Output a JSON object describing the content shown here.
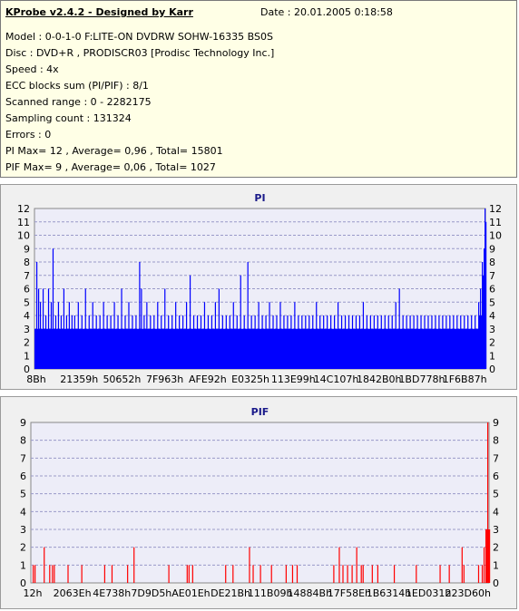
{
  "header": {
    "title": "KProbe v2.4.2 - Designed by Karr",
    "date": "Date : 20.01.2005 0:18:58",
    "lines": [
      "Model : 0-0-1-0 F:LITE-ON DVDRW SOHW-16335 BS0S",
      "Disc : DVD+R , PRODISCR03 [Prodisc Technology Inc.]",
      "Speed : 4x",
      "ECC blocks sum (PI/PIF) : 8/1",
      "Scanned range : 0 - 2282175",
      "Sampling count : 131324",
      "Errors : 0",
      "PI Max= 12 , Average= 0,96 , Total= 15801",
      "PIF Max= 9 , Average= 0,06 , Total= 1027"
    ]
  },
  "colors": {
    "pi": "#0000ff",
    "pif": "#ff0000",
    "title": "#1a1a8a",
    "plot_bg": "#ededf8"
  },
  "chart_data": [
    {
      "type": "bar",
      "title": "PI",
      "ylim": [
        0,
        12
      ],
      "yticks": [
        0,
        1,
        2,
        3,
        4,
        5,
        6,
        7,
        8,
        9,
        10,
        11,
        12
      ],
      "xtick_labels": [
        "8Bh",
        "21359h",
        "50652h",
        "7F963h",
        "AFE92h",
        "E0325h",
        "113E99h",
        "14C107h",
        "1842B0h",
        "1BD778h",
        "1F6B87h"
      ],
      "grid": true,
      "baseline": 3,
      "spikes": [
        [
          2,
          8
        ],
        [
          4,
          6
        ],
        [
          6,
          5
        ],
        [
          9,
          6
        ],
        [
          12,
          4
        ],
        [
          15,
          6
        ],
        [
          18,
          5
        ],
        [
          20,
          9
        ],
        [
          23,
          4
        ],
        [
          26,
          5
        ],
        [
          29,
          4
        ],
        [
          32,
          6
        ],
        [
          35,
          4
        ],
        [
          38,
          5
        ],
        [
          41,
          4
        ],
        [
          44,
          4
        ],
        [
          48,
          5
        ],
        [
          52,
          4
        ],
        [
          56,
          6
        ],
        [
          60,
          4
        ],
        [
          64,
          5
        ],
        [
          68,
          4
        ],
        [
          72,
          4
        ],
        [
          76,
          5
        ],
        [
          80,
          4
        ],
        [
          84,
          4
        ],
        [
          88,
          5
        ],
        [
          92,
          4
        ],
        [
          96,
          6
        ],
        [
          100,
          4
        ],
        [
          104,
          5
        ],
        [
          108,
          4
        ],
        [
          112,
          4
        ],
        [
          116,
          8
        ],
        [
          118,
          6
        ],
        [
          121,
          4
        ],
        [
          124,
          5
        ],
        [
          128,
          4
        ],
        [
          132,
          4
        ],
        [
          136,
          5
        ],
        [
          140,
          4
        ],
        [
          144,
          6
        ],
        [
          148,
          4
        ],
        [
          152,
          4
        ],
        [
          156,
          5
        ],
        [
          160,
          4
        ],
        [
          164,
          4
        ],
        [
          168,
          5
        ],
        [
          172,
          7
        ],
        [
          176,
          4
        ],
        [
          180,
          4
        ],
        [
          184,
          4
        ],
        [
          188,
          5
        ],
        [
          192,
          4
        ],
        [
          196,
          4
        ],
        [
          200,
          5
        ],
        [
          204,
          6
        ],
        [
          208,
          4
        ],
        [
          212,
          4
        ],
        [
          216,
          4
        ],
        [
          220,
          5
        ],
        [
          224,
          4
        ],
        [
          228,
          7
        ],
        [
          232,
          4
        ],
        [
          236,
          8
        ],
        [
          240,
          4
        ],
        [
          244,
          4
        ],
        [
          248,
          5
        ],
        [
          252,
          4
        ],
        [
          256,
          4
        ],
        [
          260,
          5
        ],
        [
          264,
          4
        ],
        [
          268,
          4
        ],
        [
          272,
          5
        ],
        [
          276,
          4
        ],
        [
          280,
          4
        ],
        [
          284,
          4
        ],
        [
          288,
          5
        ],
        [
          292,
          4
        ],
        [
          296,
          4
        ],
        [
          300,
          4
        ],
        [
          304,
          4
        ],
        [
          308,
          4
        ],
        [
          312,
          5
        ],
        [
          316,
          4
        ],
        [
          320,
          4
        ],
        [
          324,
          4
        ],
        [
          328,
          4
        ],
        [
          332,
          4
        ],
        [
          336,
          5
        ],
        [
          340,
          4
        ],
        [
          344,
          4
        ],
        [
          348,
          4
        ],
        [
          352,
          4
        ],
        [
          356,
          4
        ],
        [
          360,
          4
        ],
        [
          364,
          5
        ],
        [
          368,
          4
        ],
        [
          372,
          4
        ],
        [
          376,
          4
        ],
        [
          380,
          4
        ],
        [
          384,
          4
        ],
        [
          388,
          4
        ],
        [
          392,
          4
        ],
        [
          396,
          4
        ],
        [
          400,
          5
        ],
        [
          404,
          6
        ],
        [
          408,
          4
        ],
        [
          412,
          4
        ],
        [
          416,
          4
        ],
        [
          420,
          4
        ],
        [
          424,
          4
        ],
        [
          428,
          4
        ],
        [
          432,
          4
        ],
        [
          436,
          4
        ],
        [
          440,
          4
        ],
        [
          444,
          4
        ],
        [
          448,
          4
        ],
        [
          452,
          4
        ],
        [
          456,
          4
        ],
        [
          460,
          4
        ],
        [
          464,
          4
        ],
        [
          468,
          4
        ],
        [
          472,
          4
        ],
        [
          476,
          4
        ],
        [
          480,
          4
        ],
        [
          484,
          4
        ],
        [
          488,
          4
        ],
        [
          492,
          5
        ],
        [
          494,
          6
        ],
        [
          496,
          8
        ],
        [
          497,
          7
        ],
        [
          498,
          9
        ],
        [
          499,
          12
        ],
        [
          500,
          11
        ]
      ],
      "tail_from": 490
    },
    {
      "type": "bar",
      "title": "PIF",
      "ylim": [
        0,
        9
      ],
      "yticks": [
        0,
        1,
        2,
        3,
        4,
        5,
        6,
        7,
        8,
        9
      ],
      "xtick_labels": [
        "12h",
        "2063Eh",
        "4E738h",
        "7D9D5h",
        "AE01Eh",
        "DE21Bh",
        "111B09h",
        "14884Bh",
        "17F58Eh",
        "1B6314h",
        "1ED031h",
        "223D60h"
      ],
      "grid": true,
      "spikes": [
        [
          2,
          1
        ],
        [
          4,
          1
        ],
        [
          14,
          2
        ],
        [
          20,
          1
        ],
        [
          23,
          1
        ],
        [
          25,
          1
        ],
        [
          40,
          1
        ],
        [
          55,
          1
        ],
        [
          80,
          1
        ],
        [
          88,
          1
        ],
        [
          105,
          1
        ],
        [
          112,
          2
        ],
        [
          150,
          1
        ],
        [
          170,
          1
        ],
        [
          172,
          1
        ],
        [
          176,
          1
        ],
        [
          212,
          1
        ],
        [
          220,
          1
        ],
        [
          238,
          2
        ],
        [
          242,
          1
        ],
        [
          250,
          1
        ],
        [
          262,
          1
        ],
        [
          278,
          1
        ],
        [
          285,
          1
        ],
        [
          290,
          1
        ],
        [
          330,
          1
        ],
        [
          336,
          2
        ],
        [
          340,
          1
        ],
        [
          345,
          1
        ],
        [
          350,
          1
        ],
        [
          355,
          2
        ],
        [
          360,
          1
        ],
        [
          362,
          1
        ],
        [
          372,
          1
        ],
        [
          378,
          1
        ],
        [
          396,
          1
        ],
        [
          420,
          1
        ],
        [
          446,
          1
        ],
        [
          456,
          1
        ],
        [
          470,
          2
        ],
        [
          472,
          1
        ],
        [
          488,
          1
        ],
        [
          492,
          1
        ],
        [
          494,
          2
        ],
        [
          496,
          3
        ],
        [
          497,
          3
        ],
        [
          498,
          9
        ],
        [
          499,
          3
        ],
        [
          500,
          3
        ]
      ]
    }
  ]
}
